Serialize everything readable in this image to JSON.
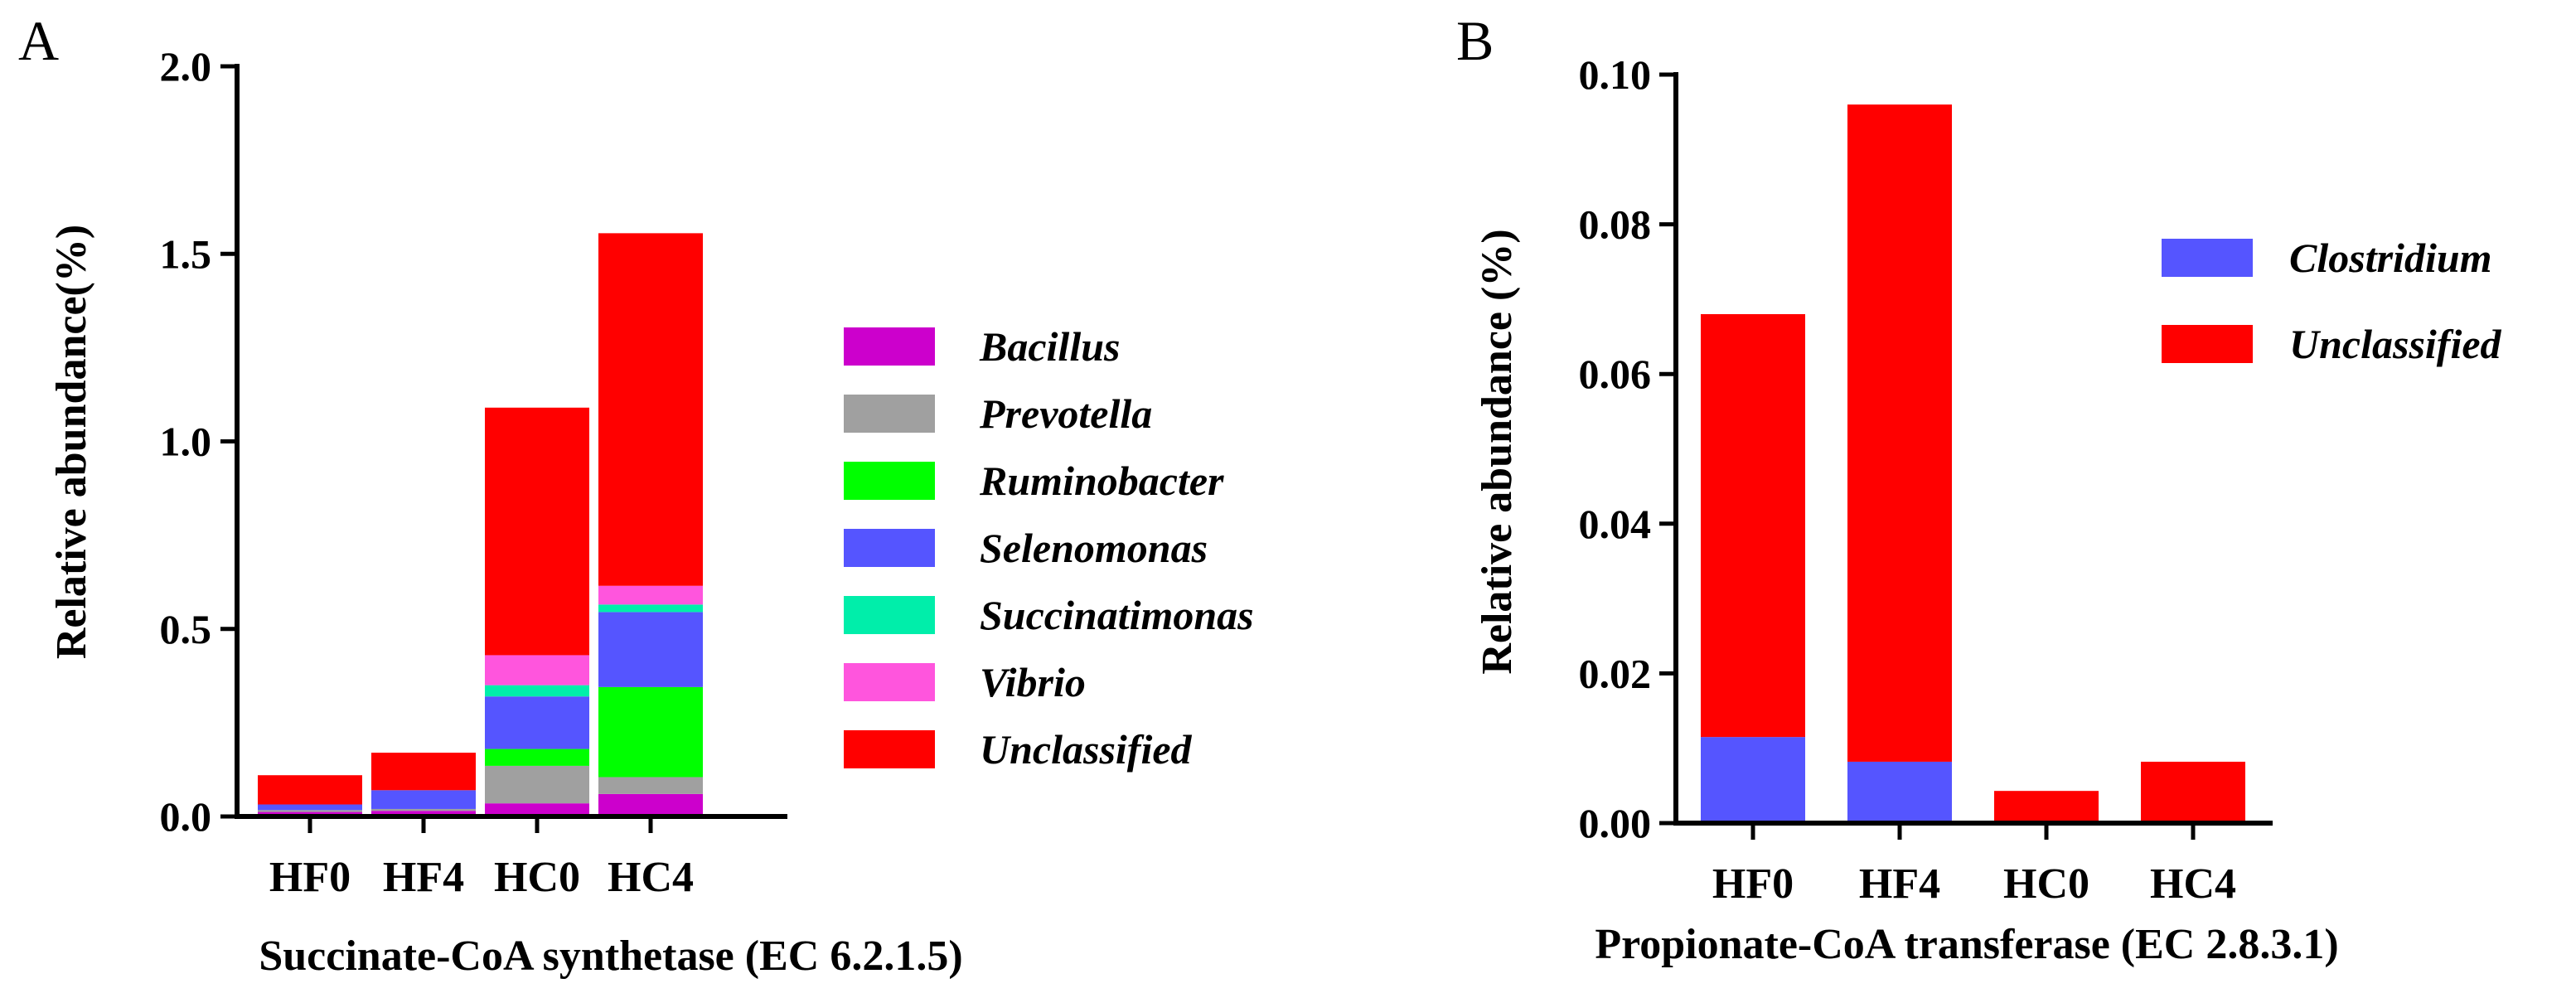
{
  "chart_data": [
    {
      "type": "bar",
      "stacked": true,
      "panel": "A",
      "title": "",
      "xlabel": "Succinate-CoA synthetase (EC 6.2.1.5)",
      "ylabel": "Relative abundance(%)",
      "ylim": [
        0,
        2.0
      ],
      "yticks": [
        0.0,
        0.5,
        1.0,
        1.5,
        2.0
      ],
      "ytick_labels": [
        "0.0",
        "0.5",
        "1.0",
        "1.5",
        "2.0"
      ],
      "categories": [
        "HF0",
        "HF4",
        "HC0",
        "HC4"
      ],
      "legend_position": "right",
      "series": [
        {
          "name": "Bacillus",
          "color": "#cc00cc",
          "values": [
            0.012,
            0.015,
            0.035,
            0.06
          ]
        },
        {
          "name": "Prevotella",
          "color": "#a0a0a0",
          "values": [
            0.005,
            0.005,
            0.1,
            0.045
          ]
        },
        {
          "name": "Ruminobacter",
          "color": "#00ff00",
          "values": [
            0.0,
            0.0,
            0.045,
            0.24
          ]
        },
        {
          "name": "Selenomonas",
          "color": "#5555ff",
          "values": [
            0.015,
            0.05,
            0.14,
            0.2
          ]
        },
        {
          "name": "Succinatimonas",
          "color": "#00eeaa",
          "values": [
            0.0,
            0.0,
            0.03,
            0.02
          ]
        },
        {
          "name": "Vibrio",
          "color": "#ff55dd",
          "values": [
            0.0,
            0.0,
            0.08,
            0.05
          ]
        },
        {
          "name": "Unclassified",
          "color": "#ff0000",
          "values": [
            0.078,
            0.1,
            0.66,
            0.94
          ]
        }
      ]
    },
    {
      "type": "bar",
      "stacked": true,
      "panel": "B",
      "title": "",
      "xlabel": "Propionate-CoA transferase (EC 2.8.3.1)",
      "ylabel": "Relative abundance (%)",
      "ylim": [
        0,
        0.1
      ],
      "yticks": [
        0.0,
        0.02,
        0.04,
        0.06,
        0.08,
        0.1
      ],
      "ytick_labels": [
        "0.00",
        "0.02",
        "0.04",
        "0.06",
        "0.08",
        "0.10"
      ],
      "categories": [
        "HF0",
        "HF4",
        "HC0",
        "HC4"
      ],
      "legend_position": "right",
      "series": [
        {
          "name": "Clostridium",
          "color": "#5555ff",
          "values": [
            0.0115,
            0.0082,
            0.0,
            0.0
          ]
        },
        {
          "name": "Unclassified",
          "color": "#ff0000",
          "values": [
            0.0565,
            0.0878,
            0.0043,
            0.0082
          ]
        }
      ]
    }
  ]
}
